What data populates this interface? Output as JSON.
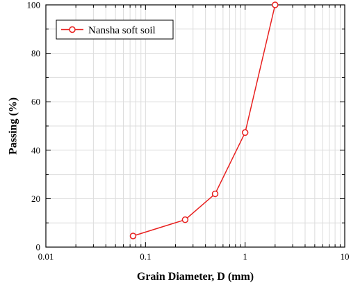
{
  "chart_data": {
    "type": "line",
    "xlabel": "Grain Diameter, D (mm)",
    "ylabel": "Passing (%)",
    "xscale": "log",
    "xlim": [
      0.01,
      10
    ],
    "ylim": [
      0,
      100
    ],
    "grid": true,
    "legend_position": "top-left",
    "x_tick_labels": [
      "0.01",
      "0.1",
      "1",
      "10"
    ],
    "y_tick_labels": [
      "0",
      "20",
      "40",
      "60",
      "80",
      "100"
    ],
    "series": [
      {
        "name": "Nansha soft soil",
        "color": "#e8201f",
        "marker": "open-circle",
        "x": [
          0.075,
          0.25,
          0.5,
          1,
          2
        ],
        "y": [
          4.6,
          11.3,
          22.0,
          47.3,
          100
        ]
      }
    ]
  }
}
